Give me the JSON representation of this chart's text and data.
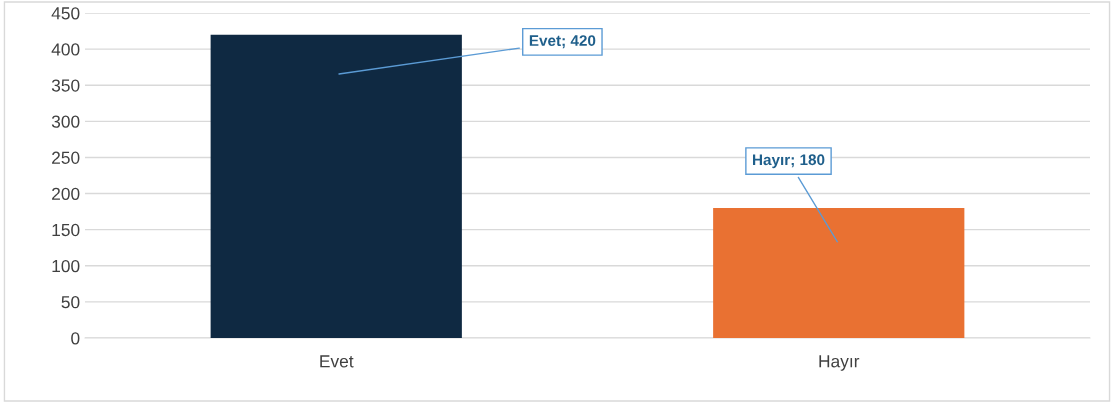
{
  "chart_data": {
    "type": "bar",
    "categories": [
      "Evet",
      "Hayır"
    ],
    "values": [
      420,
      180
    ],
    "colors": [
      "#0f2942",
      "#e97132"
    ],
    "value_labels": [
      "Evet; 420",
      "Hayır; 180"
    ],
    "ylim": [
      0,
      450
    ],
    "yticks": [
      0,
      50,
      100,
      150,
      200,
      250,
      300,
      350,
      400,
      450
    ],
    "grid": "y",
    "legend": false
  }
}
